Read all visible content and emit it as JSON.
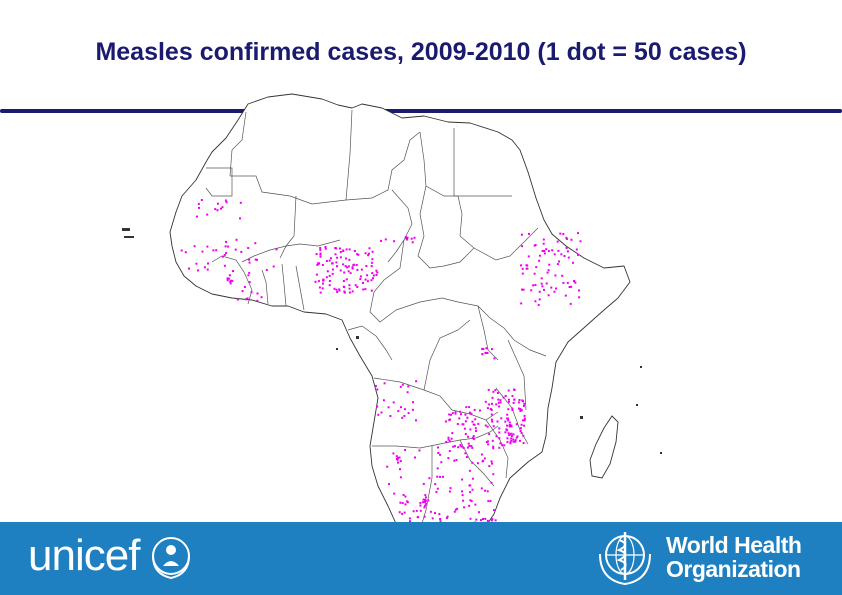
{
  "title": "Measles confirmed cases, 2009-2010 (1 dot = 50 cases)",
  "map": {
    "region": "Africa",
    "dot_value": 50,
    "colors": {
      "land": "#ffffff",
      "border": "#333333",
      "dot": "#ee00ee",
      "title": "#1a1a6e",
      "footer": "#1f80c1"
    }
  },
  "footer": {
    "unicef": {
      "word": "unicef",
      "icon": "unicef-emblem-icon"
    },
    "who": {
      "line1": "World Health",
      "line2": "Organization",
      "icon": "who-emblem-icon"
    }
  }
}
